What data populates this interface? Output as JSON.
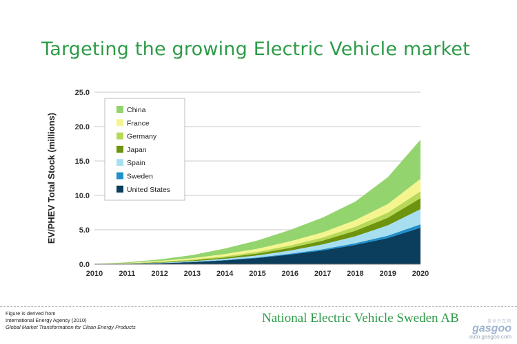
{
  "title": "Targeting the growing Electric Vehicle market",
  "source": {
    "line1": "Figure is derived from",
    "line2": "International Energy Agency (2010)",
    "line3": "Global Market Transformation for Clean Energy Products"
  },
  "brand": "National Electric Vehicle Sweden AB",
  "watermark": {
    "cn": "盖世汽车网",
    "name": "gasgoo",
    "url": "auto.gasgoo.com"
  },
  "chart_data": {
    "type": "area",
    "stacked": true,
    "title": "",
    "xlabel": "",
    "ylabel": "EV/PHEV Total Stock (millions)",
    "x": [
      2010,
      2011,
      2012,
      2013,
      2014,
      2015,
      2016,
      2017,
      2018,
      2019,
      2020
    ],
    "ylim": [
      0,
      25
    ],
    "yticks": [
      "0.0",
      "5.0",
      "10.0",
      "15.0",
      "20.0",
      "25.0"
    ],
    "grid": "horizontal",
    "legend_position": "top-left",
    "stack_order_bottom_to_top": [
      "United States",
      "Sweden",
      "Spain",
      "Japan",
      "Germany",
      "France",
      "China"
    ],
    "series": [
      {
        "name": "China",
        "color": "#93d46e",
        "values": [
          0.01,
          0.08,
          0.22,
          0.45,
          0.8,
          1.2,
          1.65,
          2.15,
          2.7,
          3.9,
          5.7
        ]
      },
      {
        "name": "France",
        "color": "#f5f590",
        "values": [
          0.01,
          0.05,
          0.12,
          0.2,
          0.32,
          0.45,
          0.6,
          0.75,
          0.95,
          1.25,
          1.8
        ]
      },
      {
        "name": "Germany",
        "color": "#b8d957",
        "values": [
          0.01,
          0.03,
          0.07,
          0.12,
          0.18,
          0.25,
          0.35,
          0.45,
          0.6,
          0.75,
          1.0
        ]
      },
      {
        "name": "Japan",
        "color": "#6e930f",
        "values": [
          0.0,
          0.03,
          0.07,
          0.12,
          0.18,
          0.27,
          0.4,
          0.55,
          0.8,
          1.1,
          1.6
        ]
      },
      {
        "name": "Spain",
        "color": "#a8dff0",
        "values": [
          0.0,
          0.02,
          0.05,
          0.1,
          0.18,
          0.3,
          0.45,
          0.7,
          1.0,
          1.5,
          2.2
        ]
      },
      {
        "name": "Sweden",
        "color": "#1f90c9",
        "values": [
          0.0,
          0.01,
          0.02,
          0.04,
          0.06,
          0.08,
          0.12,
          0.17,
          0.25,
          0.35,
          0.5
        ]
      },
      {
        "name": "United States",
        "color": "#0b3d5c",
        "values": [
          0.01,
          0.05,
          0.14,
          0.3,
          0.55,
          0.9,
          1.4,
          2.0,
          2.8,
          3.8,
          5.3
        ]
      }
    ]
  }
}
